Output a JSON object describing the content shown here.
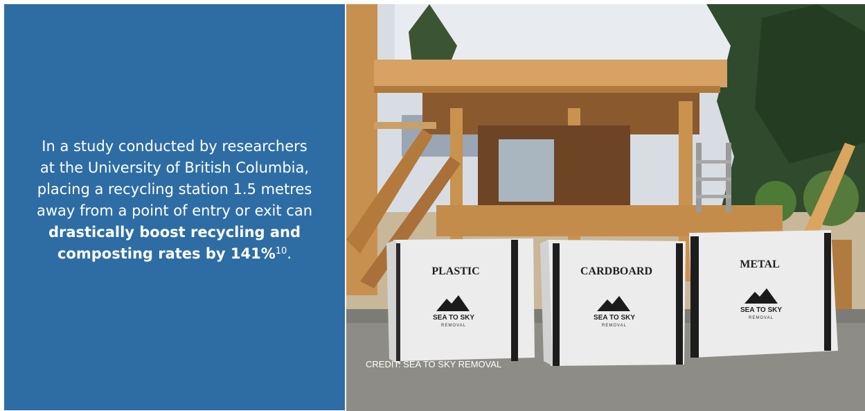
{
  "info_panel": {
    "text_lines": [
      "In a study conducted by researchers",
      "at the University of British Columbia,",
      "placing a recycling station 1.5 metres",
      "away from a point of entry or exit can"
    ],
    "bold_lines": [
      "drastically boost recycling and",
      "composting rates by 141%"
    ],
    "footnote": "10",
    "end_punct": ".",
    "background_color": "#2e6da4"
  },
  "photo": {
    "bags": [
      {
        "label": "PLASTIC",
        "brand": "SEA TO SKY",
        "brand_sub": "REMOVAL"
      },
      {
        "label": "CARDBOARD",
        "brand": "SEA TO SKY",
        "brand_sub": "REMOVAL"
      },
      {
        "label": "METAL",
        "brand": "SEA TO SKY",
        "brand_sub": "REMOVAL"
      }
    ],
    "credit": "CREDIT: SEA TO SKY REMOVAL"
  }
}
